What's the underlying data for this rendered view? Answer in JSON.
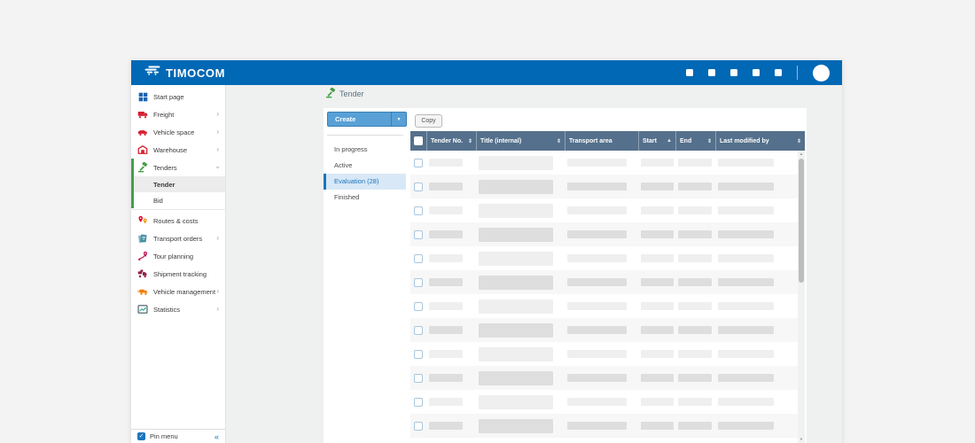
{
  "titlebar": {
    "brand": "TIMOCOM",
    "action_icon_count": 4,
    "colors": {
      "bg": "#0068b4"
    }
  },
  "sidebar": {
    "items": [
      {
        "label": "Start page",
        "icon": "grid",
        "color": "#1a66b0"
      },
      {
        "label": "Freight",
        "icon": "freight-truck",
        "color": "#d6202f",
        "chevron": true
      },
      {
        "label": "Vehicle space",
        "icon": "vehicle-truck",
        "color": "#d6202f",
        "chevron": true
      },
      {
        "label": "Warehouse",
        "icon": "warehouse",
        "color": "#d6202f",
        "chevron": true
      },
      {
        "label": "Tenders",
        "icon": "gavel",
        "color": "#43a047",
        "expanded": true,
        "children": [
          {
            "label": "Tender",
            "selected": true
          },
          {
            "label": "Bid",
            "selected": false
          }
        ]
      },
      {
        "label": "Routes & costs",
        "icon": "map-pins",
        "color": "#e2001a"
      },
      {
        "label": "Transport orders",
        "icon": "documents",
        "color": "#3f8ea5",
        "chevron": true
      },
      {
        "label": "Tour planning",
        "icon": "route-pin",
        "color": "#c2185b"
      },
      {
        "label": "Shipment tracking",
        "icon": "tracking-truck",
        "color": "#8e2144"
      },
      {
        "label": "Vehicle management",
        "icon": "management-truck",
        "color": "#ef7d00",
        "chevron": true
      },
      {
        "label": "Statistics",
        "icon": "chart",
        "color": "#2e7d32",
        "chevron": true
      }
    ],
    "pin_menu_label": "Pin menu",
    "pin_checked": true,
    "collapse_glyph": "«"
  },
  "page": {
    "title": "Tender"
  },
  "toolbar": {
    "create_label": "Create",
    "copy_label": "Copy"
  },
  "subnav": {
    "items": [
      {
        "label": "In progress",
        "selected": false
      },
      {
        "label": "Active",
        "selected": false
      },
      {
        "label": "Evaluation (28)",
        "selected": true
      },
      {
        "label": "Finished",
        "selected": false
      }
    ]
  },
  "table": {
    "columns": [
      {
        "label": "Tender No.",
        "sort": "both"
      },
      {
        "label": "Title (internal)",
        "sort": "both"
      },
      {
        "label": "Transport area",
        "sort": "none"
      },
      {
        "label": "Start",
        "sort": "asc"
      },
      {
        "label": "End",
        "sort": "both"
      },
      {
        "label": "Last modified by",
        "sort": "both"
      }
    ],
    "skeleton_row_count": 13,
    "header_bg": "#54708c"
  }
}
